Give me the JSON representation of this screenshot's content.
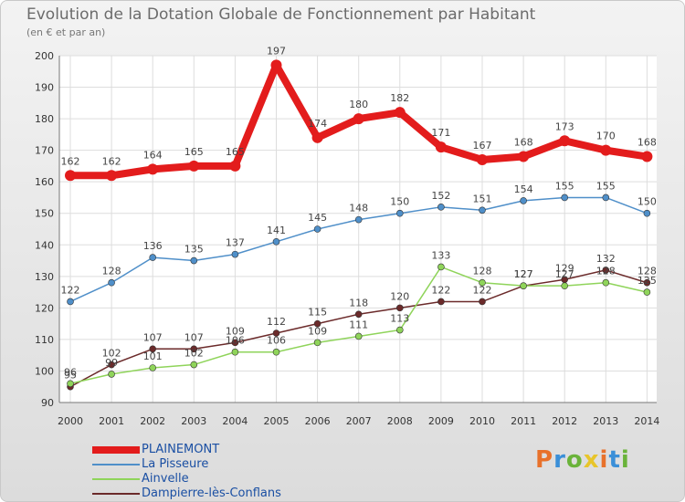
{
  "header": {
    "title": "Evolution de la Dotation Globale de Fonctionnement par Habitant",
    "subtitle": "(en € et par an)"
  },
  "logo": {
    "text": "Proxiti",
    "colors": [
      "#e8712b",
      "#3a8fd8",
      "#6ab33a",
      "#e8c52b"
    ]
  },
  "chart_data": {
    "type": "line",
    "categories": [
      "2000",
      "2001",
      "2002",
      "2003",
      "2004",
      "2005",
      "2006",
      "2007",
      "2008",
      "2009",
      "2010",
      "2011",
      "2012",
      "2013",
      "2014"
    ],
    "ylim": [
      90,
      200
    ],
    "yticks": [
      90,
      100,
      110,
      120,
      130,
      140,
      150,
      160,
      170,
      180,
      190,
      200
    ],
    "grid": true,
    "legend_placement": "bottom-left",
    "series": [
      {
        "name": "PLAINEMONT",
        "color": "#e31c1c",
        "values": [
          162,
          162,
          164,
          165,
          165,
          197,
          174,
          180,
          182,
          171,
          167,
          168,
          173,
          170,
          168
        ]
      },
      {
        "name": "La Pisseure",
        "color": "#4f8fc9",
        "values": [
          122,
          128,
          136,
          135,
          137,
          141,
          145,
          148,
          150,
          152,
          151,
          154,
          155,
          155,
          150
        ]
      },
      {
        "name": "Ainvelle",
        "color": "#8fd45a",
        "values": [
          96,
          99,
          101,
          102,
          106,
          106,
          109,
          111,
          113,
          133,
          128,
          127,
          127,
          128,
          125
        ]
      },
      {
        "name": "Dampierre-lès-Conflans",
        "color": "#6b2a2a",
        "values": [
          95,
          102,
          107,
          107,
          109,
          112,
          115,
          118,
          120,
          122,
          122,
          127,
          129,
          132,
          128
        ]
      }
    ]
  }
}
